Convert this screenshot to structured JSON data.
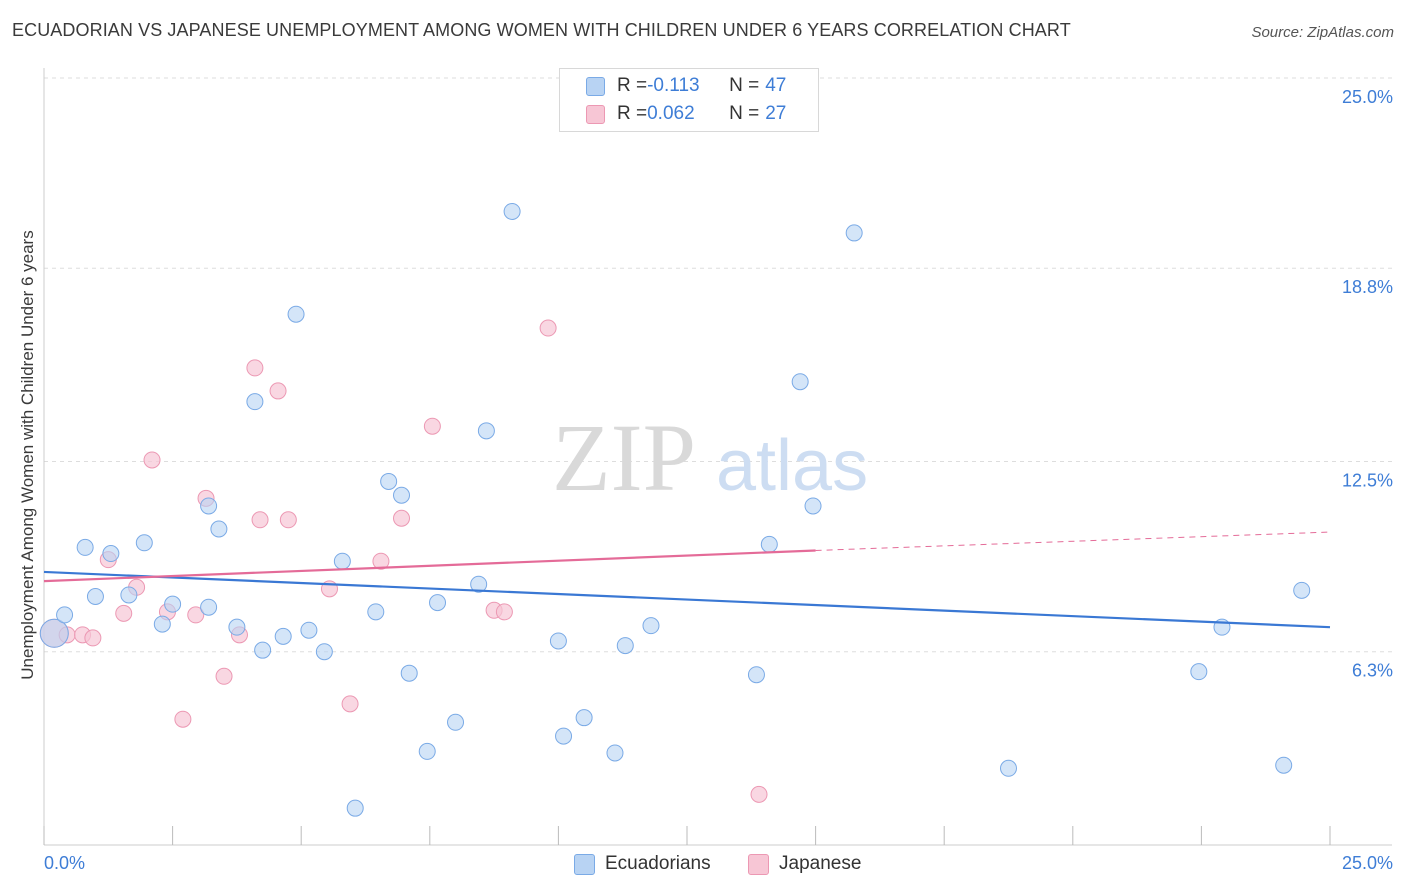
{
  "title": "ECUADORIAN VS JAPANESE UNEMPLOYMENT AMONG WOMEN WITH CHILDREN UNDER 6 YEARS CORRELATION CHART",
  "source": "Source: ZipAtlas.com",
  "watermark": {
    "zip": "ZIP",
    "atlas": "atlas"
  },
  "legend": {
    "rows": [
      {
        "r_label": "R = ",
        "r_value": "-0.113",
        "n_label": "N = ",
        "n_value": "47"
      },
      {
        "r_label": "R = ",
        "r_value": "0.062",
        "n_label": "N = ",
        "n_value": "27"
      }
    ]
  },
  "bottom_legend": [
    "Ecuadorians",
    "Japanese"
  ],
  "colors": {
    "ecuadorian_fill": "#b8d3f3",
    "ecuadorian_stroke": "#7aaae6",
    "ecuadorian_line": "#3a78d4",
    "japanese_fill": "#f7c6d5",
    "japanese_stroke": "#ec98b3",
    "japanese_line": "#e46b98",
    "axis_label": "#3e7dd6",
    "grid": "#dddddd"
  },
  "chart_data": {
    "type": "scatter",
    "title": "ECUADORIAN VS JAPANESE UNEMPLOYMENT AMONG WOMEN WITH CHILDREN UNDER 6 YEARS CORRELATION CHART",
    "xlabel": "",
    "ylabel": "Unemployment Among Women with Children Under 6 years",
    "xlim": [
      0,
      25
    ],
    "ylim": [
      0,
      25
    ],
    "x_tick_labels": [
      "0.0%",
      "25.0%"
    ],
    "y_ticks": [
      6.3,
      12.5,
      18.8,
      25.0
    ],
    "y_tick_labels": [
      "6.3%",
      "12.5%",
      "18.8%",
      "25.0%"
    ],
    "series": [
      {
        "name": "Ecuadorians",
        "R": -0.113,
        "N": 47,
        "trend": {
          "x": [
            0,
            25
          ],
          "y": [
            8.9,
            7.1
          ]
        },
        "points": [
          {
            "x": 0.2,
            "y": 6.9,
            "big": true
          },
          {
            "x": 0.4,
            "y": 7.5
          },
          {
            "x": 0.8,
            "y": 9.7
          },
          {
            "x": 1.0,
            "y": 8.1
          },
          {
            "x": 1.3,
            "y": 9.5
          },
          {
            "x": 1.65,
            "y": 8.15
          },
          {
            "x": 1.95,
            "y": 9.85
          },
          {
            "x": 2.3,
            "y": 7.2
          },
          {
            "x": 2.5,
            "y": 7.85
          },
          {
            "x": 3.2,
            "y": 7.75
          },
          {
            "x": 3.2,
            "y": 11.05
          },
          {
            "x": 3.4,
            "y": 10.3
          },
          {
            "x": 3.75,
            "y": 7.1
          },
          {
            "x": 4.1,
            "y": 14.45
          },
          {
            "x": 4.25,
            "y": 6.35
          },
          {
            "x": 4.65,
            "y": 6.8
          },
          {
            "x": 4.9,
            "y": 17.3
          },
          {
            "x": 5.15,
            "y": 7.0
          },
          {
            "x": 5.45,
            "y": 6.3
          },
          {
            "x": 5.8,
            "y": 9.25
          },
          {
            "x": 6.05,
            "y": 1.2
          },
          {
            "x": 6.45,
            "y": 7.6
          },
          {
            "x": 6.7,
            "y": 11.85
          },
          {
            "x": 6.95,
            "y": 11.4
          },
          {
            "x": 7.1,
            "y": 5.6
          },
          {
            "x": 7.45,
            "y": 3.05
          },
          {
            "x": 7.65,
            "y": 7.9
          },
          {
            "x": 8.0,
            "y": 4.0
          },
          {
            "x": 8.45,
            "y": 8.5
          },
          {
            "x": 8.6,
            "y": 13.5
          },
          {
            "x": 9.1,
            "y": 20.65
          },
          {
            "x": 10.1,
            "y": 3.55
          },
          {
            "x": 10.0,
            "y": 6.65
          },
          {
            "x": 10.5,
            "y": 4.15
          },
          {
            "x": 11.1,
            "y": 3.0
          },
          {
            "x": 11.3,
            "y": 6.5
          },
          {
            "x": 11.8,
            "y": 7.15
          },
          {
            "x": 13.85,
            "y": 5.55
          },
          {
            "x": 14.1,
            "y": 9.8
          },
          {
            "x": 14.7,
            "y": 15.1
          },
          {
            "x": 14.95,
            "y": 11.05
          },
          {
            "x": 15.75,
            "y": 19.95
          },
          {
            "x": 18.75,
            "y": 2.5
          },
          {
            "x": 22.45,
            "y": 5.65
          },
          {
            "x": 22.9,
            "y": 7.1
          },
          {
            "x": 24.1,
            "y": 2.6
          },
          {
            "x": 24.45,
            "y": 8.3
          }
        ]
      },
      {
        "name": "Japanese",
        "R": 0.062,
        "N": 27,
        "trend": {
          "x": [
            0,
            15
          ],
          "y": [
            8.6,
            9.6
          ]
        },
        "trend_dashed": {
          "x": [
            15,
            25
          ],
          "y": [
            9.6,
            10.2
          ]
        },
        "points": [
          {
            "x": 0.2,
            "y": 6.9,
            "big": true
          },
          {
            "x": 0.45,
            "y": 6.85
          },
          {
            "x": 0.75,
            "y": 6.85
          },
          {
            "x": 0.95,
            "y": 6.75
          },
          {
            "x": 1.25,
            "y": 9.3
          },
          {
            "x": 1.55,
            "y": 7.55
          },
          {
            "x": 1.8,
            "y": 8.4
          },
          {
            "x": 2.1,
            "y": 12.55
          },
          {
            "x": 2.4,
            "y": 7.6
          },
          {
            "x": 2.7,
            "y": 4.1
          },
          {
            "x": 2.95,
            "y": 7.5
          },
          {
            "x": 3.15,
            "y": 11.3
          },
          {
            "x": 3.5,
            "y": 5.5
          },
          {
            "x": 3.8,
            "y": 6.85
          },
          {
            "x": 4.1,
            "y": 15.55
          },
          {
            "x": 4.2,
            "y": 10.6
          },
          {
            "x": 4.55,
            "y": 14.8
          },
          {
            "x": 4.75,
            "y": 10.6
          },
          {
            "x": 5.55,
            "y": 8.35
          },
          {
            "x": 5.95,
            "y": 4.6
          },
          {
            "x": 6.55,
            "y": 9.25
          },
          {
            "x": 6.95,
            "y": 10.65
          },
          {
            "x": 7.55,
            "y": 13.65
          },
          {
            "x": 8.75,
            "y": 7.65
          },
          {
            "x": 8.95,
            "y": 7.6
          },
          {
            "x": 9.8,
            "y": 16.85
          },
          {
            "x": 13.9,
            "y": 1.65
          }
        ]
      }
    ]
  }
}
